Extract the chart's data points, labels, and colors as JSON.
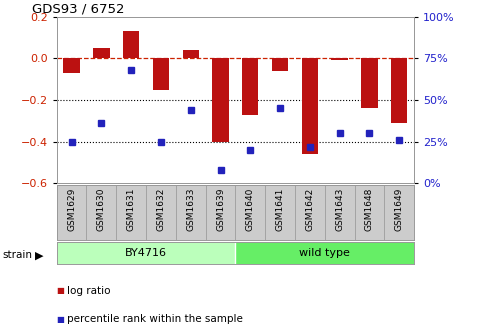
{
  "title": "GDS93 / 6752",
  "samples": [
    "GSM1629",
    "GSM1630",
    "GSM1631",
    "GSM1632",
    "GSM1633",
    "GSM1639",
    "GSM1640",
    "GSM1641",
    "GSM1642",
    "GSM1643",
    "GSM1648",
    "GSM1649"
  ],
  "log_ratio": [
    -0.07,
    0.05,
    0.13,
    -0.15,
    0.04,
    -0.4,
    -0.27,
    -0.06,
    -0.46,
    -0.01,
    -0.24,
    -0.31
  ],
  "percentile": [
    25,
    36,
    68,
    25,
    44,
    8,
    20,
    45,
    22,
    30,
    30,
    26
  ],
  "strain_groups": [
    {
      "label": "BY4716",
      "start": 0,
      "end": 5,
      "color": "#bbffbb"
    },
    {
      "label": "wild type",
      "start": 6,
      "end": 11,
      "color": "#66ee66"
    }
  ],
  "bar_color": "#bb1111",
  "dot_color": "#2222bb",
  "left_ylim": [
    -0.6,
    0.2
  ],
  "right_ylim": [
    0,
    100
  ],
  "left_yticks": [
    -0.6,
    -0.4,
    -0.2,
    0.0,
    0.2
  ],
  "right_yticks": [
    0,
    25,
    50,
    75,
    100
  ],
  "hline_y": 0.0,
  "dotted_lines": [
    -0.2,
    -0.4
  ],
  "bg_color": "#ffffff",
  "tick_label_color_left": "#cc2200",
  "tick_label_color_right": "#2222cc",
  "label_box_color": "#cccccc",
  "label_box_border": "#999999"
}
